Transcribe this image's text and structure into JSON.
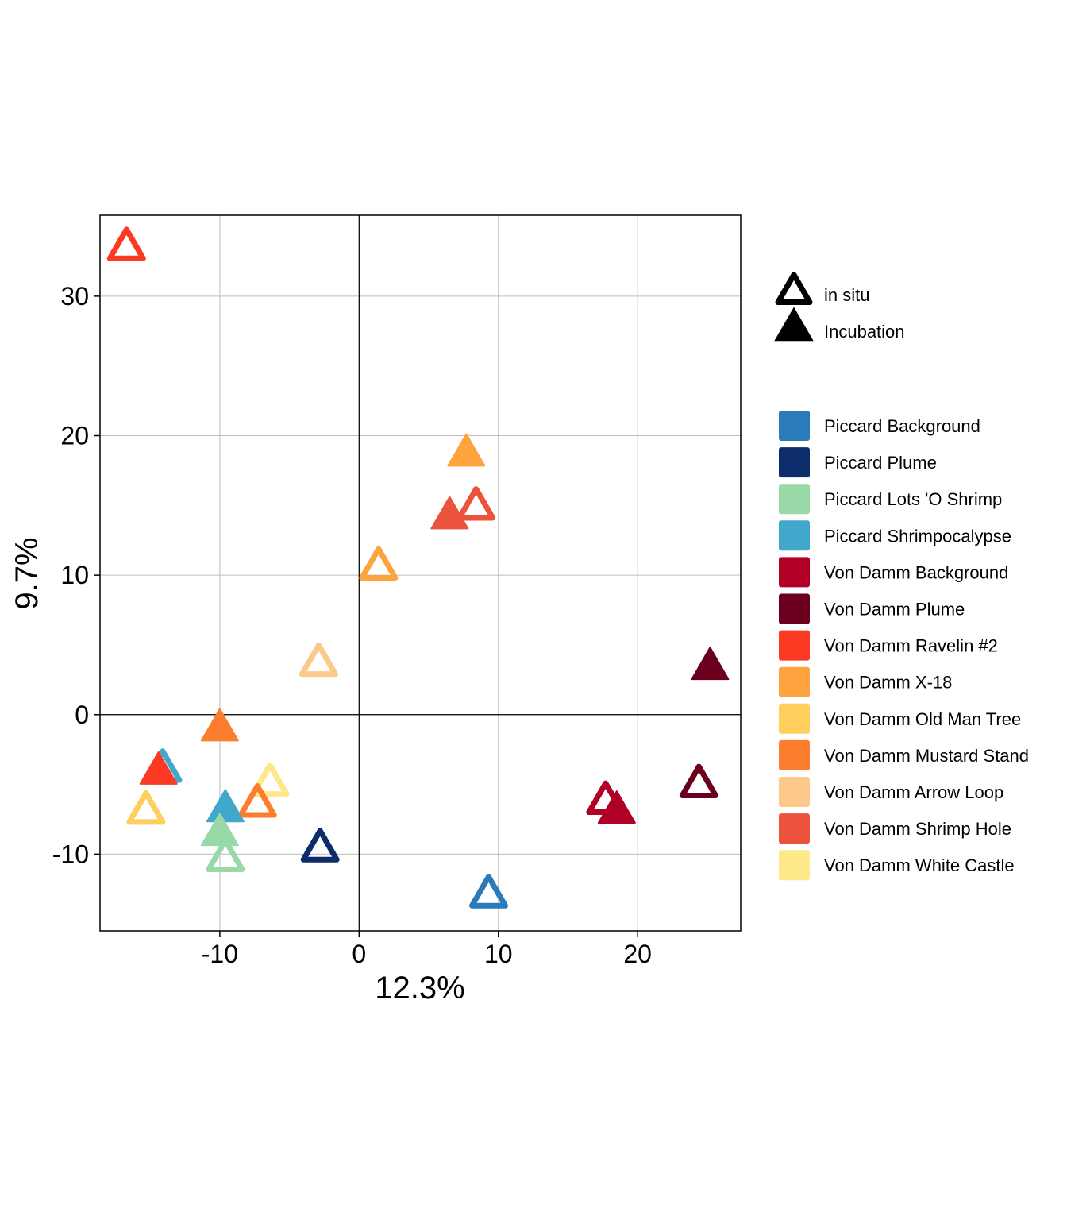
{
  "chart_data": {
    "type": "scatter",
    "xlabel": "12.3%",
    "ylabel": "9.7%",
    "xlim": [
      -18.6,
      27.4
    ],
    "ylim": [
      -15.5,
      35.8
    ],
    "xticks": [
      -10,
      0,
      10,
      20
    ],
    "yticks": [
      -10,
      0,
      10,
      20,
      30
    ],
    "xtick_labels": [
      "-10",
      "0",
      "10",
      "20"
    ],
    "ytick_labels": [
      "-10",
      "0",
      "10",
      "20",
      "30"
    ],
    "grid": true,
    "reference_lines": {
      "x": 0,
      "y": 0
    },
    "shape_legend": [
      {
        "label": "in situ",
        "shape": "open-triangle"
      },
      {
        "label": "Incubation",
        "shape": "filled-triangle"
      }
    ],
    "color_legend": [
      {
        "label": "Piccard Background",
        "color": "#2b7bba"
      },
      {
        "label": "Piccard Plume",
        "color": "#0c2c6c"
      },
      {
        "label": "Piccard Lots 'O Shrimp",
        "color": "#99d8a7"
      },
      {
        "label": "Piccard Shrimpocalypse",
        "color": "#41a8cc"
      },
      {
        "label": "Von Damm Background",
        "color": "#b10026"
      },
      {
        "label": "Von Damm Plume",
        "color": "#6b001e"
      },
      {
        "label": "Von Damm Ravelin #2",
        "color": "#fc3a24"
      },
      {
        "label": "Von Damm X-18",
        "color": "#fea33d"
      },
      {
        "label": "Von Damm Old Man Tree",
        "color": "#fecf5c"
      },
      {
        "label": "Von Damm Mustard Stand",
        "color": "#fd7d2f"
      },
      {
        "label": "Von Damm Arrow Loop",
        "color": "#fdc98a"
      },
      {
        "label": "Von Damm Shrimp Hole",
        "color": "#ec533c"
      },
      {
        "label": "Von Damm White Castle",
        "color": "#fee889"
      }
    ],
    "points": [
      {
        "group": "Von Damm Ravelin #2",
        "type": "in situ",
        "x": -16.7,
        "y": 33.4
      },
      {
        "group": "Von Damm X-18",
        "type": "Incubation",
        "x": 7.7,
        "y": 18.6
      },
      {
        "group": "Von Damm Shrimp Hole",
        "type": "Incubation",
        "x": 6.5,
        "y": 14.1
      },
      {
        "group": "Von Damm Shrimp Hole",
        "type": "in situ",
        "x": 8.4,
        "y": 14.8
      },
      {
        "group": "Von Damm X-18",
        "type": "in situ",
        "x": 1.4,
        "y": 10.5
      },
      {
        "group": "Von Damm Arrow Loop",
        "type": "in situ",
        "x": -2.9,
        "y": 3.6
      },
      {
        "group": "Von Damm Plume",
        "type": "Incubation",
        "x": 25.2,
        "y": 3.3
      },
      {
        "group": "Von Damm Mustard Stand",
        "type": "Incubation",
        "x": -10.0,
        "y": -1.1
      },
      {
        "group": "Piccard Shrimpocalypse",
        "type": "in situ",
        "x": -14.1,
        "y": -4.0
      },
      {
        "group": "Von Damm Ravelin #2",
        "type": "Incubation",
        "x": -14.4,
        "y": -4.2
      },
      {
        "group": "Von Damm White Castle",
        "type": "in situ",
        "x": -6.4,
        "y": -5.0
      },
      {
        "group": "Von Damm Plume",
        "type": "in situ",
        "x": 24.4,
        "y": -5.1
      },
      {
        "group": "Von Damm Background",
        "type": "in situ",
        "x": 17.7,
        "y": -6.3
      },
      {
        "group": "Von Damm Background",
        "type": "Incubation",
        "x": 18.5,
        "y": -7.0
      },
      {
        "group": "Von Damm Mustard Stand",
        "type": "in situ",
        "x": -7.3,
        "y": -6.5
      },
      {
        "group": "Von Damm Old Man Tree",
        "type": "in situ",
        "x": -15.3,
        "y": -7.0
      },
      {
        "group": "Piccard Shrimpocalypse",
        "type": "Incubation",
        "x": -9.6,
        "y": -6.9
      },
      {
        "group": "Piccard Lots 'O Shrimp",
        "type": "Incubation",
        "x": -10.0,
        "y": -8.6
      },
      {
        "group": "Piccard Plume",
        "type": "in situ",
        "x": -2.8,
        "y": -9.7
      },
      {
        "group": "Piccard Lots 'O Shrimp",
        "type": "in situ",
        "x": -9.6,
        "y": -10.4
      },
      {
        "group": "Piccard Background",
        "type": "in situ",
        "x": 9.3,
        "y": -13.0
      }
    ]
  }
}
